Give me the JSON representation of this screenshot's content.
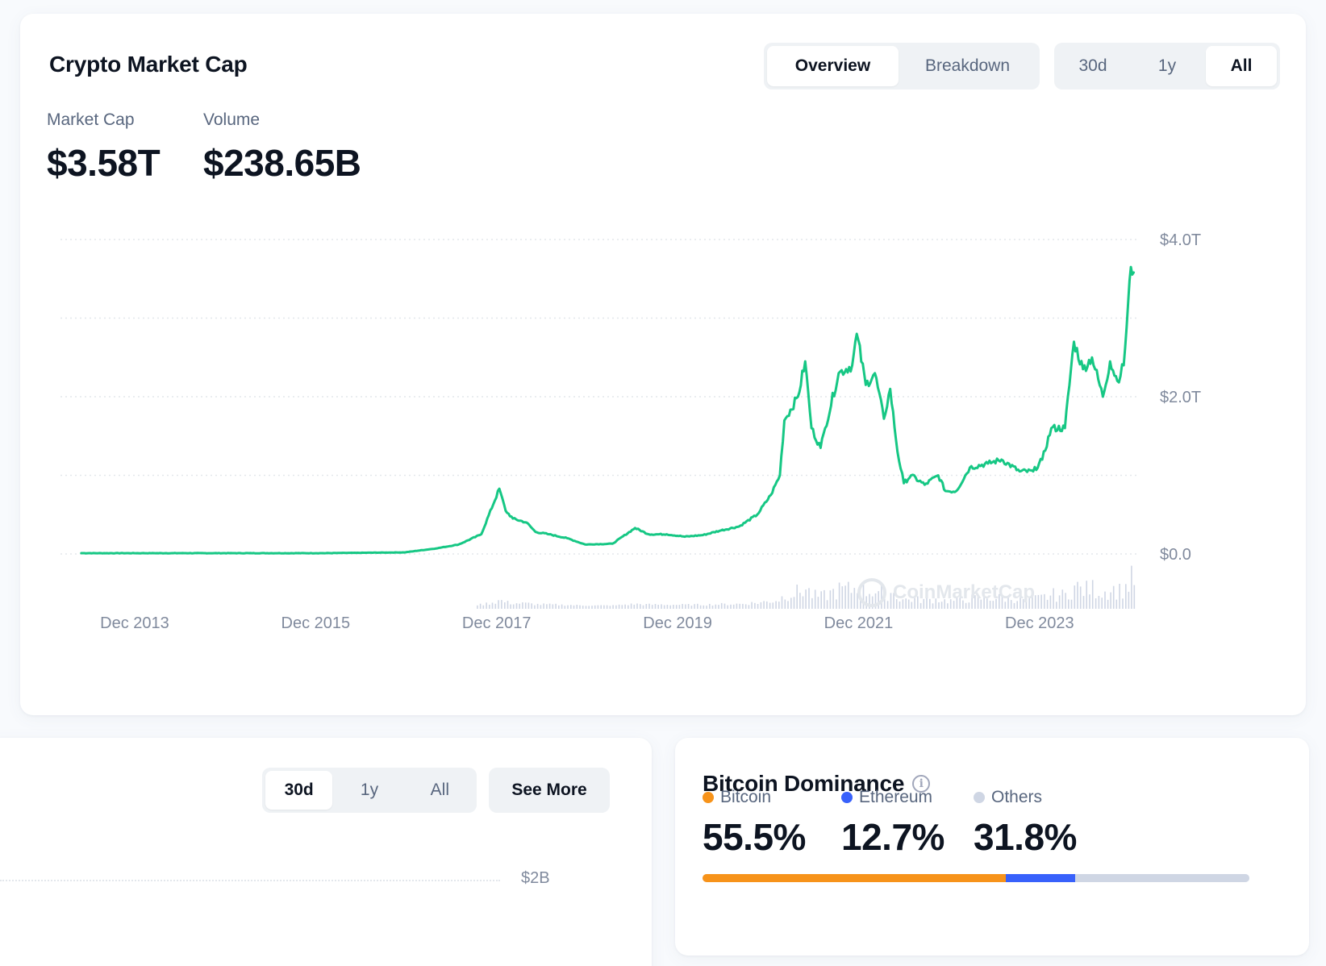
{
  "main": {
    "title": "Crypto Market Cap",
    "view_tabs": [
      {
        "label": "Overview",
        "active": true
      },
      {
        "label": "Breakdown",
        "active": false
      }
    ],
    "range_tabs": [
      {
        "label": "30d",
        "active": false
      },
      {
        "label": "1y",
        "active": false
      },
      {
        "label": "All",
        "active": true
      }
    ],
    "stats": {
      "market_cap_label": "Market Cap",
      "market_cap_value": "$3.58T",
      "volume_label": "Volume",
      "volume_value": "$238.65B"
    },
    "watermark": "CoinMarketCap"
  },
  "chart_data": {
    "type": "line",
    "title": "",
    "xlabel": "",
    "ylabel": "",
    "x_tick_labels": [
      "Dec 2013",
      "Dec 2015",
      "Dec 2017",
      "Dec 2019",
      "Dec 2021",
      "Dec 2023"
    ],
    "y_tick_labels": [
      "$4.0T",
      "$2.0T",
      "$0.0"
    ],
    "ylim": [
      0,
      4.0
    ],
    "y_unit": "trillion USD",
    "grid": true,
    "line_color": "#16c784",
    "volume_bar_color": "#cfd6e4",
    "series": [
      {
        "x": [
          2013.33,
          2014.0,
          2015.0,
          2016.0,
          2016.9,
          2017.25,
          2017.5,
          2017.75,
          2017.95,
          2018.02,
          2018.1,
          2018.25,
          2018.35,
          2018.5,
          2018.7,
          2018.9,
          2019.2,
          2019.45,
          2019.6,
          2019.8,
          2020.0,
          2020.2,
          2020.4,
          2020.6,
          2020.8,
          2020.95,
          2021.05,
          2021.1,
          2021.25,
          2021.33,
          2021.4,
          2021.5,
          2021.55,
          2021.7,
          2021.85,
          2021.9,
          2022.0,
          2022.1,
          2022.2,
          2022.27,
          2022.35,
          2022.42,
          2022.5,
          2022.65,
          2022.8,
          2022.88,
          2023.0,
          2023.15,
          2023.35,
          2023.5,
          2023.7,
          2023.85,
          2023.95,
          2024.05,
          2024.2,
          2024.3,
          2024.4,
          2024.5,
          2024.62,
          2024.7,
          2024.78,
          2024.85,
          2024.93,
          2024.96
        ],
        "y": [
          0.01,
          0.01,
          0.01,
          0.01,
          0.02,
          0.07,
          0.12,
          0.25,
          0.83,
          0.55,
          0.45,
          0.4,
          0.28,
          0.25,
          0.2,
          0.12,
          0.13,
          0.33,
          0.25,
          0.25,
          0.22,
          0.24,
          0.3,
          0.35,
          0.5,
          0.75,
          1.0,
          1.7,
          2.0,
          2.45,
          1.6,
          1.35,
          1.6,
          2.3,
          2.4,
          2.8,
          2.15,
          2.3,
          1.72,
          2.1,
          1.3,
          0.9,
          1.0,
          0.88,
          1.0,
          0.8,
          0.8,
          1.1,
          1.15,
          1.2,
          1.05,
          1.05,
          1.2,
          1.6,
          1.6,
          2.7,
          2.35,
          2.5,
          2.0,
          2.45,
          2.2,
          2.4,
          3.65,
          3.58
        ]
      }
    ]
  },
  "volume_card": {
    "range_tabs": [
      {
        "label": "30d",
        "active": true
      },
      {
        "label": "1y",
        "active": false
      },
      {
        "label": "All",
        "active": false
      }
    ],
    "see_more_label": "See More",
    "tick_label": "$2B"
  },
  "dominance": {
    "title": "Bitcoin Dominance",
    "items": [
      {
        "name": "Bitcoin",
        "value": "55.5%",
        "share": 55.5,
        "color": "#f7931a"
      },
      {
        "name": "Ethereum",
        "value": "12.7%",
        "share": 12.7,
        "color": "#3861fb"
      },
      {
        "name": "Others",
        "value": "31.8%",
        "share": 31.8,
        "color": "#cfd6e4"
      }
    ]
  }
}
